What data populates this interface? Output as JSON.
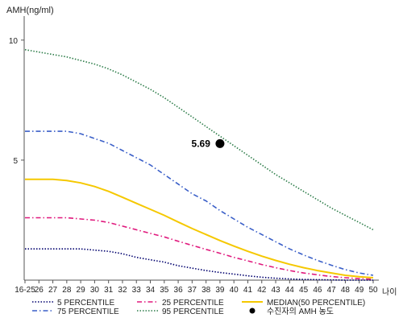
{
  "chart_data": {
    "type": "line",
    "ylabel": "AMH(ng/ml)",
    "xlabel": "나이",
    "ylim": [
      0,
      11
    ],
    "y_ticks": [
      "5",
      "10"
    ],
    "x": [
      "16-25",
      "26",
      "27",
      "28",
      "29",
      "30",
      "31",
      "32",
      "33",
      "34",
      "35",
      "36",
      "37",
      "38",
      "39",
      "40",
      "41",
      "42",
      "43",
      "44",
      "45",
      "46",
      "47",
      "48",
      "49",
      "50"
    ],
    "series": [
      {
        "name": "5 PERCENTILE",
        "color": "#00006e",
        "style": "dotted",
        "values": [
          1.3,
          1.3,
          1.3,
          1.3,
          1.3,
          1.25,
          1.2,
          1.1,
          0.95,
          0.85,
          0.75,
          0.6,
          0.5,
          0.4,
          0.32,
          0.25,
          0.18,
          0.12,
          0.08,
          0.05,
          0.03,
          0.02,
          0.01,
          0.0,
          0.0,
          0.0
        ]
      },
      {
        "name": "75 PERCENTILE",
        "color": "#3a5fc8",
        "style": "dashdot",
        "values": [
          6.2,
          6.2,
          6.2,
          6.2,
          6.1,
          5.9,
          5.7,
          5.4,
          5.1,
          4.8,
          4.4,
          4.0,
          3.6,
          3.3,
          2.9,
          2.55,
          2.2,
          1.9,
          1.6,
          1.3,
          1.05,
          0.82,
          0.62,
          0.44,
          0.3,
          0.2
        ]
      },
      {
        "name": "25 PERCENTILE",
        "color": "#e0197d",
        "style": "dashdot",
        "values": [
          2.6,
          2.6,
          2.6,
          2.6,
          2.55,
          2.5,
          2.4,
          2.25,
          2.1,
          1.95,
          1.8,
          1.62,
          1.45,
          1.28,
          1.12,
          0.95,
          0.8,
          0.65,
          0.52,
          0.4,
          0.3,
          0.22,
          0.15,
          0.1,
          0.06,
          0.04
        ]
      },
      {
        "name": "95 PERCENTILE",
        "color": "#2e7d4a",
        "style": "dotted",
        "values": [
          9.6,
          9.5,
          9.4,
          9.3,
          9.15,
          9.0,
          8.8,
          8.55,
          8.25,
          7.95,
          7.6,
          7.2,
          6.8,
          6.4,
          6.0,
          5.6,
          5.2,
          4.8,
          4.4,
          4.05,
          3.7,
          3.35,
          3.0,
          2.7,
          2.4,
          2.1
        ]
      },
      {
        "name": "MEDIAN(50 PERCENTILE)",
        "color": "#f5c800",
        "style": "solid",
        "values": [
          4.2,
          4.2,
          4.2,
          4.15,
          4.05,
          3.9,
          3.7,
          3.45,
          3.2,
          2.95,
          2.7,
          2.42,
          2.15,
          1.9,
          1.65,
          1.42,
          1.2,
          1.0,
          0.82,
          0.66,
          0.52,
          0.4,
          0.3,
          0.2,
          0.14,
          0.1
        ]
      }
    ],
    "marker": {
      "name": "수진자의 AMH 농도",
      "x": "39",
      "y": 5.69,
      "label": "5.69"
    },
    "legend_position": "bottom"
  }
}
